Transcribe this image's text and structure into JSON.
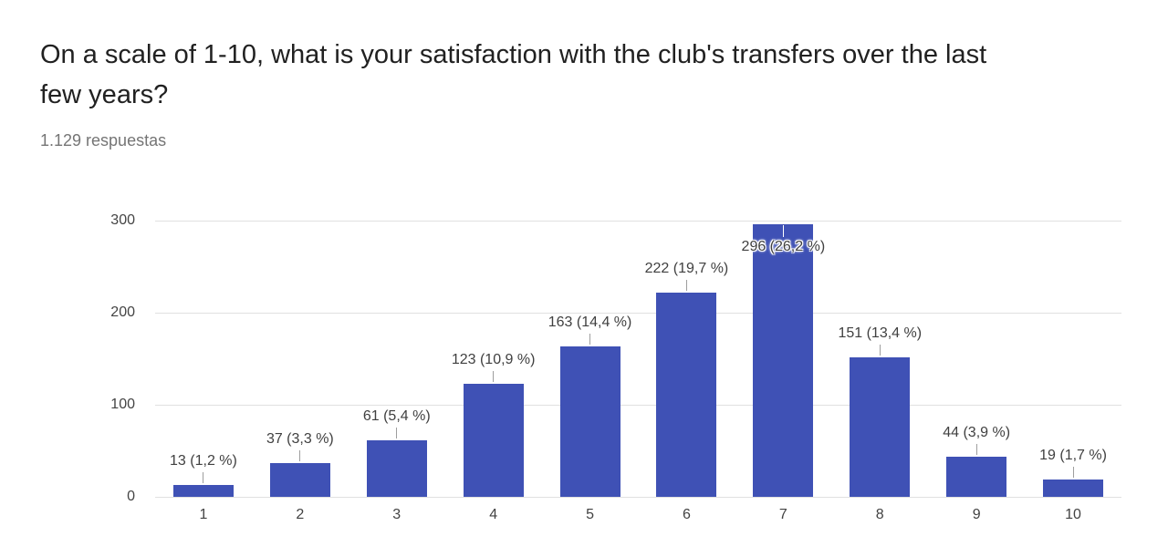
{
  "page": {
    "title": "On a scale of 1-10, what is your satisfaction with the club's transfers over the last few years?",
    "subtitle": "1.129 respuestas"
  },
  "chart_data": {
    "type": "bar",
    "title": "On a scale of 1-10, what is your satisfaction with the club's transfers over the last few years?",
    "subtitle": "1.129 respuestas",
    "categories": [
      "1",
      "2",
      "3",
      "4",
      "5",
      "6",
      "7",
      "8",
      "9",
      "10"
    ],
    "values": [
      13,
      37,
      61,
      123,
      163,
      222,
      296,
      151,
      44,
      19
    ],
    "percentages": [
      1.2,
      3.3,
      5.4,
      10.9,
      14.4,
      19.7,
      26.2,
      13.4,
      3.9,
      1.7
    ],
    "annotations": [
      "13 (1,2 %)",
      "37 (3,3 %)",
      "61 (5,4 %)",
      "123 (10,9 %)",
      "163 (14,4 %)",
      "222 (19,7 %)",
      "296 (26,2 %)",
      "151 (13,4 %)",
      "44 (3,9 %)",
      "19 (1,7 %)"
    ],
    "xlabel": "",
    "ylabel": "",
    "y_ticks": [
      0,
      100,
      200,
      300
    ],
    "ylim": [
      0,
      300
    ],
    "grid": true,
    "legend_position": "none",
    "bar_color": "#3f51b5",
    "grid_color": "#e0e0e0",
    "stem_color": "#9e9e9e",
    "inside_label_indices": [
      6
    ]
  }
}
